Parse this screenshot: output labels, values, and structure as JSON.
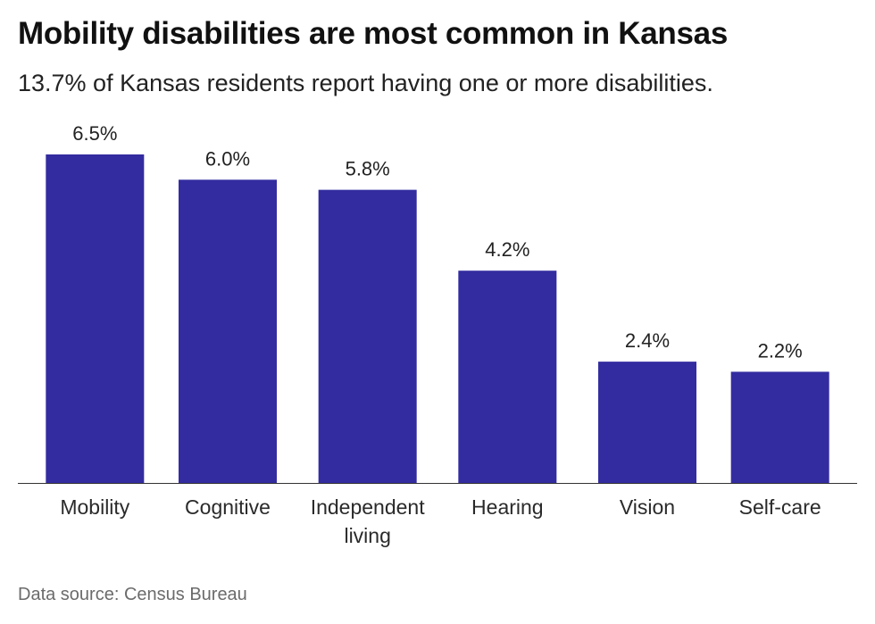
{
  "header": {
    "title": "Mobility disabilities are most common in Kansas",
    "subtitle": "13.7% of Kansas residents report having one or more disabilities."
  },
  "footer": {
    "source": "Data source: Census Bureau"
  },
  "chart_data": {
    "type": "bar",
    "title": "Mobility disabilities are most common in Kansas",
    "subtitle": "13.7% of Kansas residents report having one or more disabilities.",
    "categories": [
      "Mobility",
      "Cognitive",
      "Independent living",
      "Hearing",
      "Vision",
      "Self-care"
    ],
    "category_lines": [
      [
        "Mobility"
      ],
      [
        "Cognitive"
      ],
      [
        "Independent",
        "living"
      ],
      [
        "Hearing"
      ],
      [
        "Vision"
      ],
      [
        "Self-care"
      ]
    ],
    "values": [
      6.5,
      6.0,
      5.8,
      4.2,
      2.4,
      2.2
    ],
    "value_labels": [
      "6.5%",
      "6.0%",
      "5.8%",
      "4.2%",
      "2.4%",
      "2.2%"
    ],
    "xlabel": "",
    "ylabel": "",
    "ylim": [
      0,
      6.5
    ],
    "grid": false,
    "legend": "none",
    "bar_color": "#332ca0",
    "axis_color": "#333333"
  }
}
